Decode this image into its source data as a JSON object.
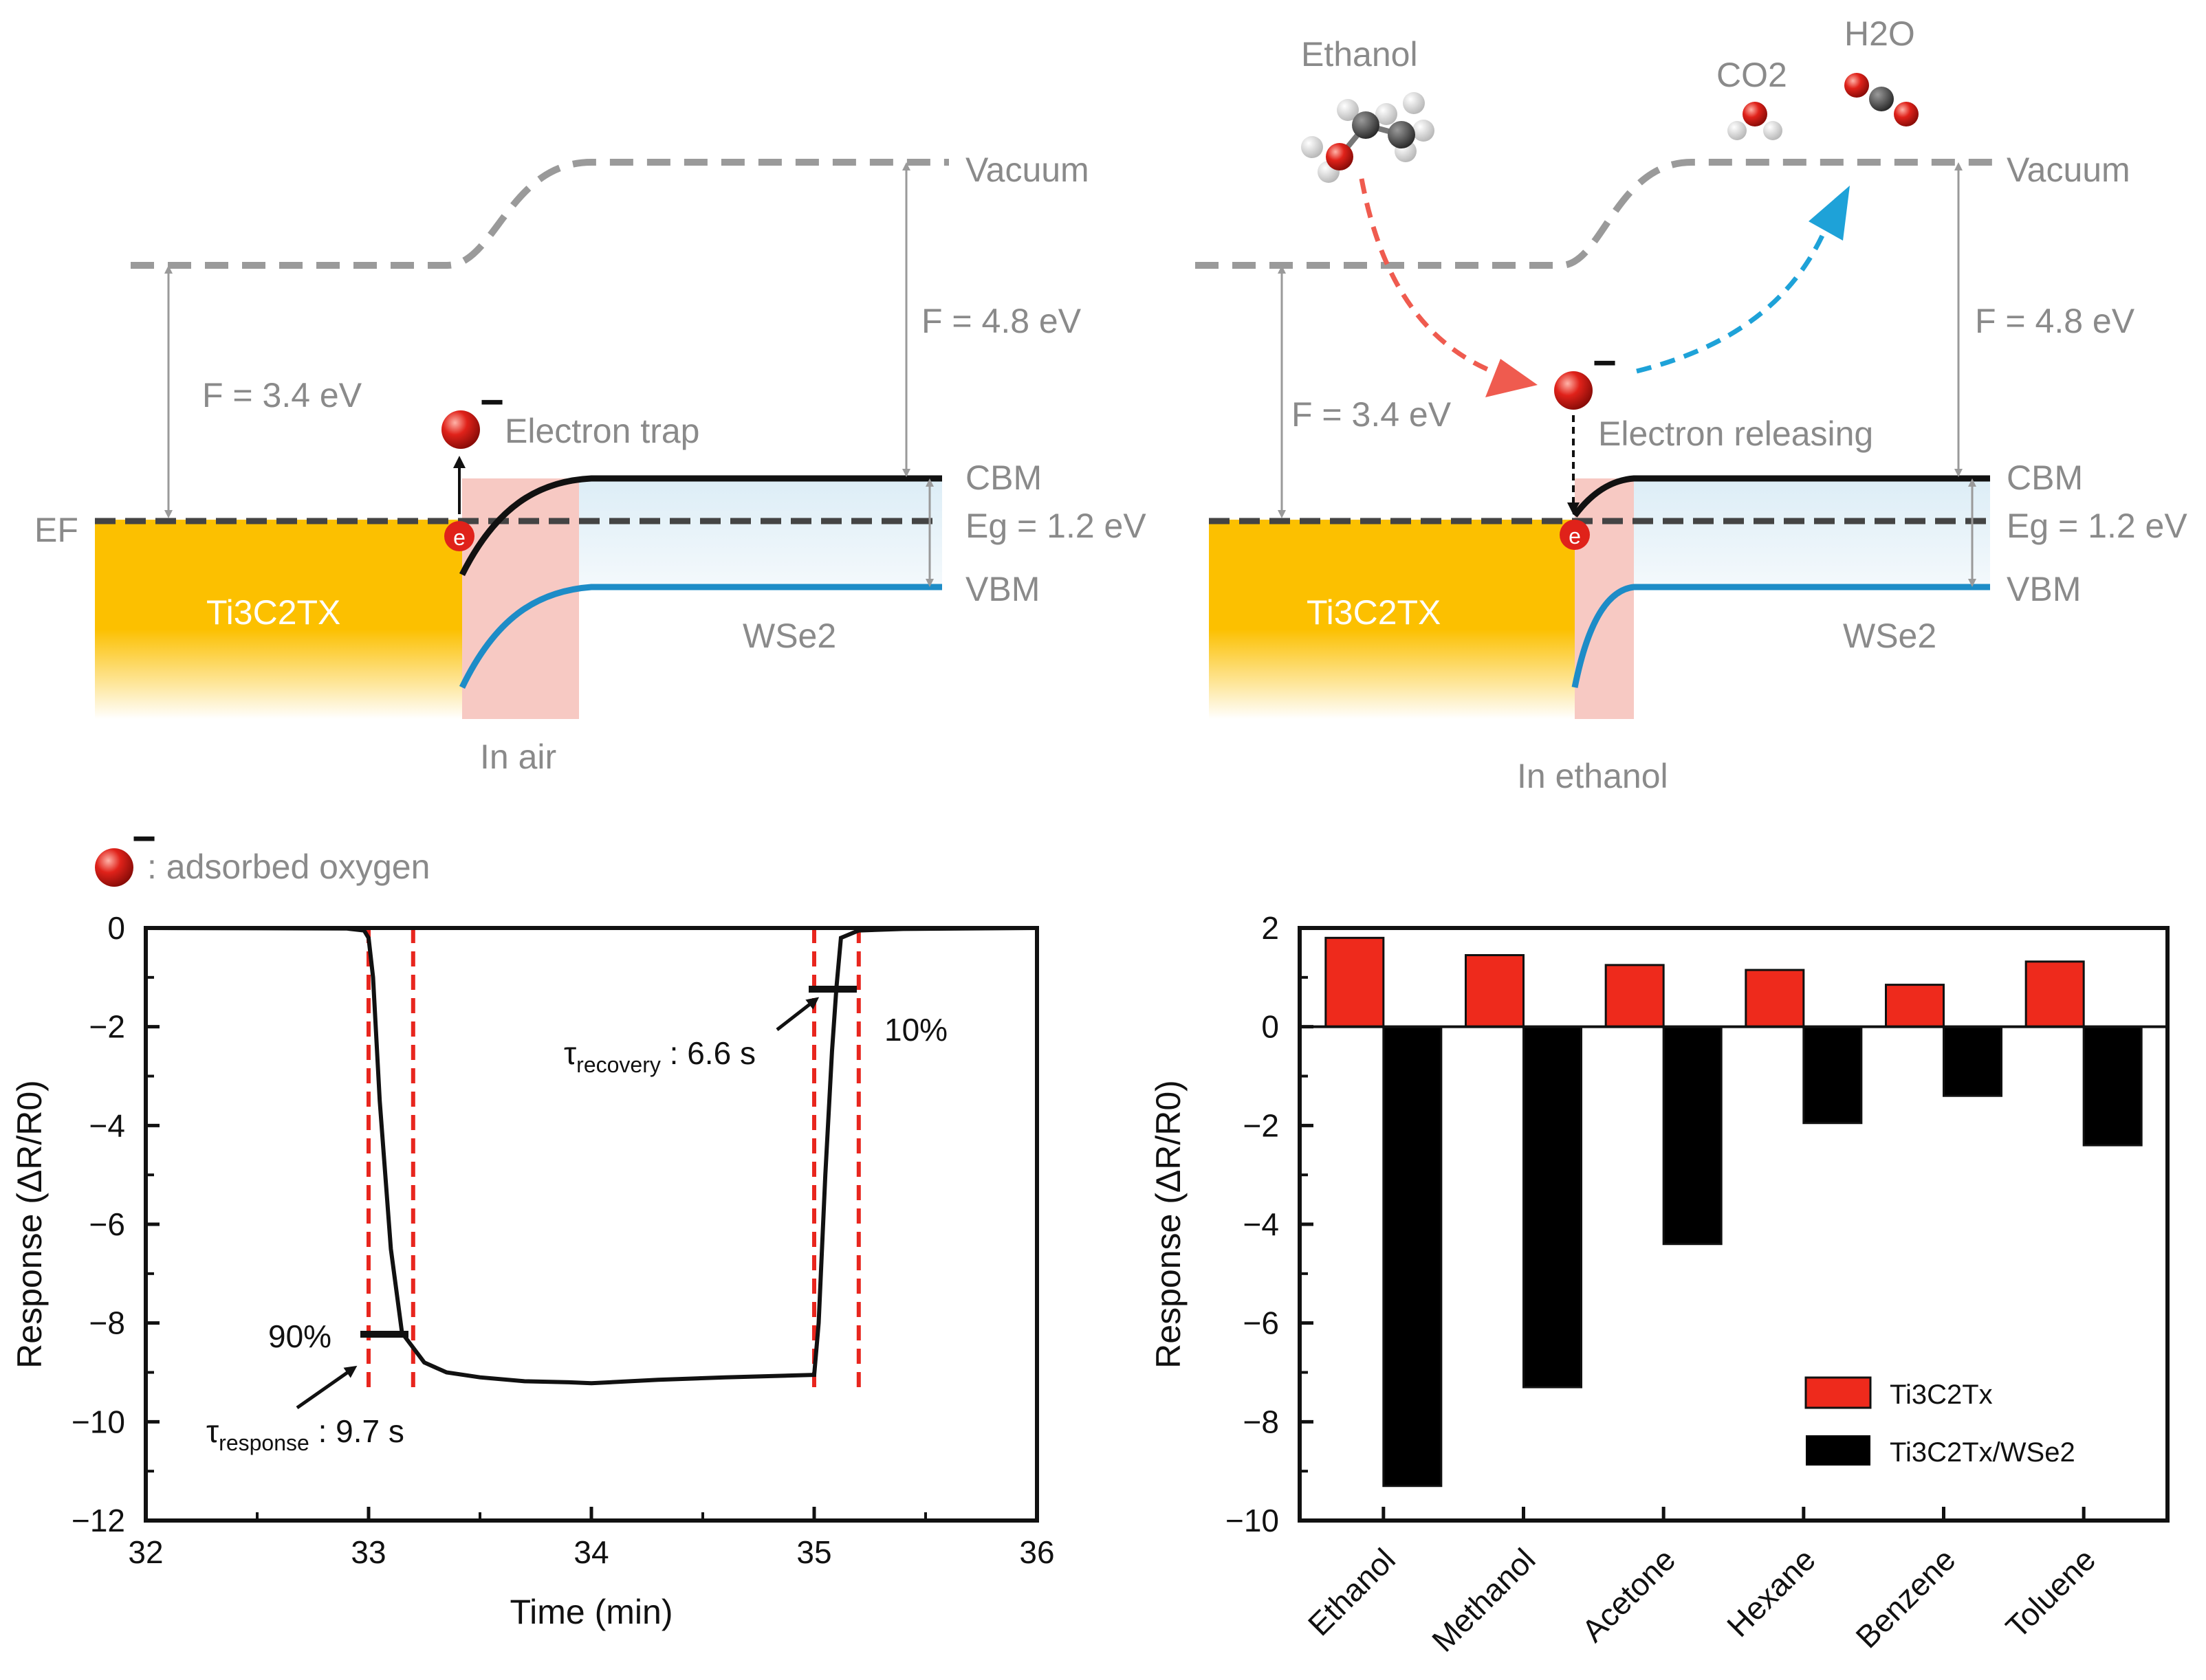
{
  "colors": {
    "metal_gold": "#fcc000",
    "depletion_pink": "#f7c9c3",
    "gap_blue": "#dcedf6",
    "vbm_blue": "#1d8cc7",
    "electron_red": "#e0221a",
    "ethanol_arrow": "#ef5b4f",
    "release_arrow": "#1ea2d8",
    "bar_ti3c2tx": "#ee2a1c",
    "bar_hetero": "#000000",
    "guide_red": "#e8261e",
    "level_gray": "#9a9a9a",
    "label_gray": "#8a8a8a"
  },
  "band_diagrams": {
    "left": {
      "metal_label": "Ti3C2TX",
      "semiconductor_label": "WSe2",
      "fermi_label": "EF",
      "vacuum_label": "Vacuum",
      "cbm_label": "CBM",
      "vbm_label": "VBM",
      "gap_label": "Eg = 1.2 eV",
      "phi_metal": "F = 3.4 eV",
      "phi_semi": "F = 4.8 eV",
      "event_label": "Electron trap",
      "caption": "In air",
      "electron_symbol": "e",
      "charge_symbol": "−"
    },
    "right": {
      "metal_label": "Ti3C2TX",
      "semiconductor_label": "WSe2",
      "vacuum_label": "Vacuum",
      "cbm_label": "CBM",
      "vbm_label": "VBM",
      "gap_label": "Eg = 1.2 eV",
      "phi_metal": "F = 3.4 eV",
      "phi_semi": "F = 4.8 eV",
      "event_label": "Electron releasing",
      "caption": "In ethanol",
      "electron_symbol": "e",
      "charge_symbol": "−",
      "molecules": {
        "reactant": "Ethanol",
        "product_1": "CO2",
        "product_2": "H2O"
      }
    },
    "legend": {
      "text": ": adsorbed oxygen",
      "charge_symbol": "−"
    }
  },
  "chart_data": [
    {
      "type": "line",
      "title": "",
      "xlabel": "Time (min)",
      "ylabel": "Response (ΔR/R0)",
      "xlim": [
        32,
        36
      ],
      "ylim": [
        -12,
        0
      ],
      "x_ticks": [
        32,
        33,
        34,
        35,
        36
      ],
      "y_ticks": [
        0,
        -2,
        -4,
        -6,
        -8,
        -10,
        -12
      ],
      "tick_labels_x": [
        "32",
        "33",
        "34",
        "35",
        "36"
      ],
      "tick_labels_y": [
        "0",
        "−2",
        "−4",
        "−6",
        "−8",
        "−10",
        "−12"
      ],
      "series": [
        {
          "name": "response",
          "x": [
            32.0,
            32.9,
            32.98,
            33.0,
            33.02,
            33.05,
            33.1,
            33.15,
            33.2,
            33.25,
            33.35,
            33.5,
            33.7,
            33.9,
            34.0,
            34.3,
            34.6,
            35.0,
            35.02,
            35.05,
            35.08,
            35.1,
            35.12,
            35.2,
            35.4,
            36.0
          ],
          "y": [
            0.0,
            -0.01,
            -0.05,
            -0.2,
            -1.0,
            -3.5,
            -6.5,
            -8.2,
            -8.5,
            -8.8,
            -9.0,
            -9.1,
            -9.18,
            -9.2,
            -9.22,
            -9.15,
            -9.1,
            -9.05,
            -8.0,
            -5.0,
            -2.5,
            -1.2,
            -0.2,
            -0.05,
            -0.02,
            0.0
          ]
        }
      ],
      "guides_x": [
        33.0,
        33.2,
        35.0,
        35.2
      ],
      "annotations": {
        "response_pct": "90%",
        "response_tau": "τ",
        "response_sub": "response",
        "response_value": " : 9.7 s",
        "recovery_pct": "10%",
        "recovery_tau": "τ",
        "recovery_sub": "recovery",
        "recovery_value": " : 6.6 s"
      }
    },
    {
      "type": "bar",
      "title": "",
      "xlabel": "",
      "ylabel": "Response (ΔR/R0)",
      "ylim": [
        -10,
        2
      ],
      "y_ticks": [
        2,
        0,
        -2,
        -4,
        -6,
        -8,
        -10
      ],
      "tick_labels_y": [
        "2",
        "0",
        "−2",
        "−4",
        "−6",
        "−8",
        "−10"
      ],
      "categories": [
        "Ethanol",
        "Methanol",
        "Acetone",
        "Hexane",
        "Benzene",
        "Toluene"
      ],
      "series": [
        {
          "name": "Ti3C2Tx",
          "values": [
            1.8,
            1.45,
            1.25,
            1.15,
            0.85,
            1.32
          ]
        },
        {
          "name": "Ti3C2Tx/WSe2",
          "values": [
            -9.3,
            -7.3,
            -4.4,
            -1.95,
            -1.4,
            -2.4
          ]
        }
      ],
      "legend": [
        "Ti3C2Tx",
        "Ti3C2Tx/WSe2"
      ],
      "legend_position": "bottom-right"
    }
  ]
}
